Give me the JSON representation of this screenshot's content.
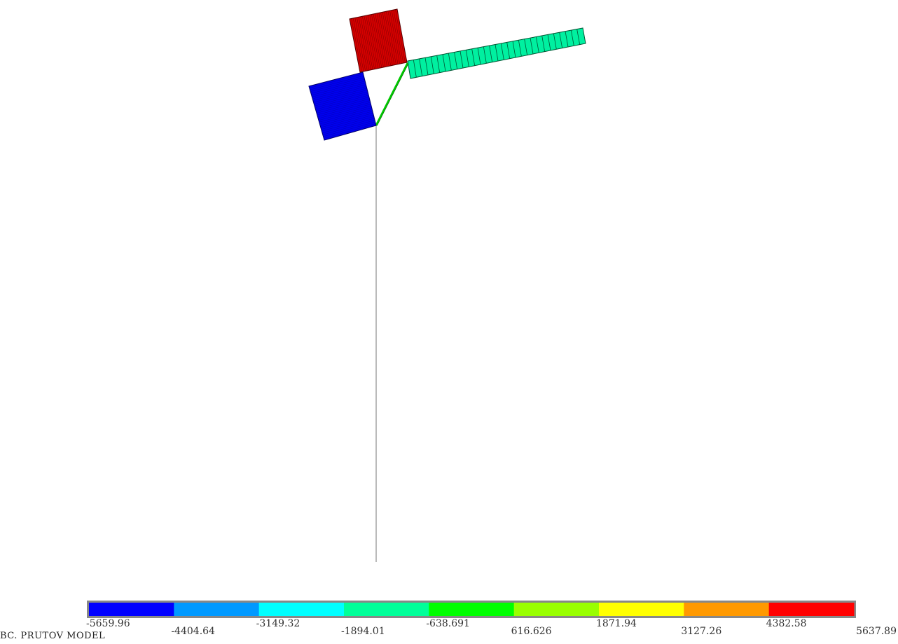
{
  "title": "BC. PRUTOV  MODEL",
  "colors": {
    "blue_square": "#0000ee",
    "red_square": "#d40000",
    "beam": "#00f0a0",
    "strut": "#00d400",
    "line": "#777777"
  },
  "legend": {
    "colors": [
      "#0000ff",
      "#0099ff",
      "#00ffff",
      "#00ff99",
      "#00ff00",
      "#99ff00",
      "#ffff00",
      "#ff9900",
      "#ff0000"
    ],
    "labels": [
      "-5659.96",
      "-4404.64",
      "-3149.32",
      "-1894.01",
      "-638.691",
      "616.626",
      "1871.94",
      "3127.26",
      "4382.58",
      "5637.89"
    ]
  }
}
